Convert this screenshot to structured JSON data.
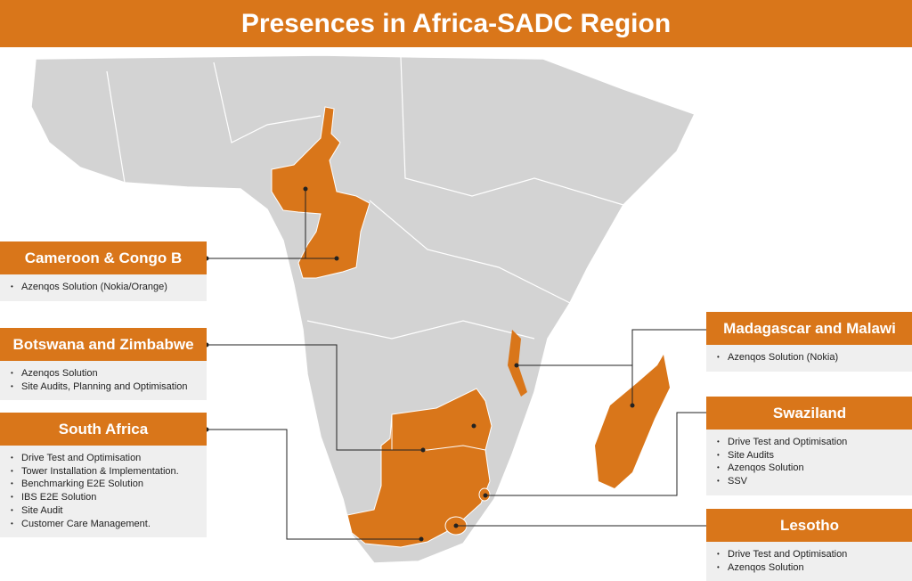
{
  "title": "Presences in Africa-SADC Region",
  "panels": [
    {
      "title": "Cameroon & Congo B",
      "items": [
        "Azenqos Solution (Nokia/Orange)"
      ]
    },
    {
      "title": "Botswana and Zimbabwe",
      "items": [
        "Azenqos Solution",
        "Site Audits, Planning and Optimisation"
      ]
    },
    {
      "title": "South Africa",
      "items": [
        "Drive Test and Optimisation",
        "Tower Installation & Implementation.",
        "Benchmarking E2E Solution",
        "IBS E2E Solution",
        "Site Audit",
        "Customer Care Management."
      ]
    },
    {
      "title": "Madagascar and Malawi",
      "items": [
        "Azenqos Solution (Nokia)"
      ]
    },
    {
      "title": "Swaziland",
      "items": [
        "Drive Test and Optimisation",
        "Site Audits",
        "Azenqos Solution",
        "SSV"
      ]
    },
    {
      "title": "Lesotho",
      "items": [
        "Drive Test and Optimisation",
        "Azenqos Solution"
      ]
    }
  ]
}
